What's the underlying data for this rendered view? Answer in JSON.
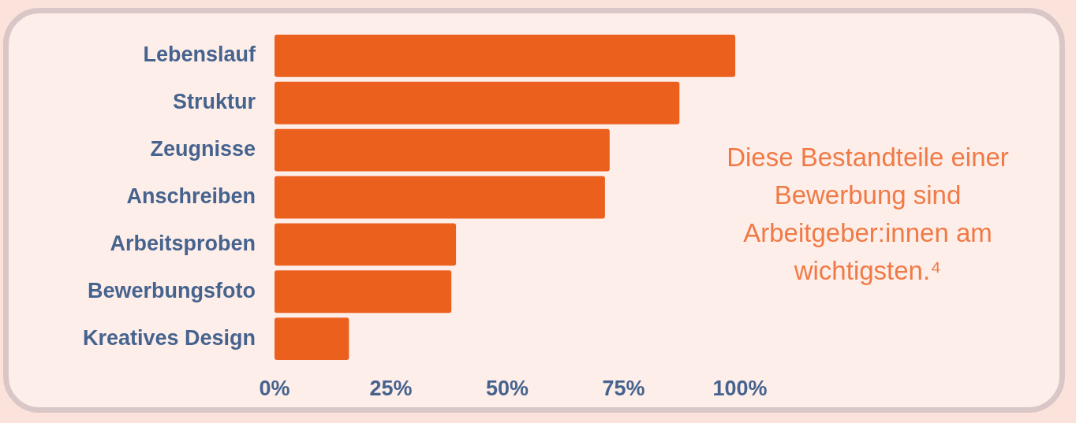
{
  "chart_data": {
    "type": "bar",
    "orientation": "horizontal",
    "categories": [
      "Lebenslauf",
      "Struktur",
      "Zeugnisse",
      "Anschreiben",
      "Arbeitsproben",
      "Bewerbungsfoto",
      "Kreatives Design"
    ],
    "values": [
      99,
      87,
      72,
      71,
      39,
      38,
      16
    ],
    "color": "#ec601e",
    "xlim": [
      0,
      100
    ],
    "xticks": [
      {
        "value": 0,
        "label": "0%"
      },
      {
        "value": 25,
        "label": "25%"
      },
      {
        "value": 50,
        "label": "50%"
      },
      {
        "value": 75,
        "label": "75%"
      },
      {
        "value": 100,
        "label": "100%"
      }
    ],
    "grid": false,
    "annotations": [
      "Diese Bestandteile einer Bewerbung sind Arbeitgeber:innen am wichtigsten.⁴"
    ]
  }
}
